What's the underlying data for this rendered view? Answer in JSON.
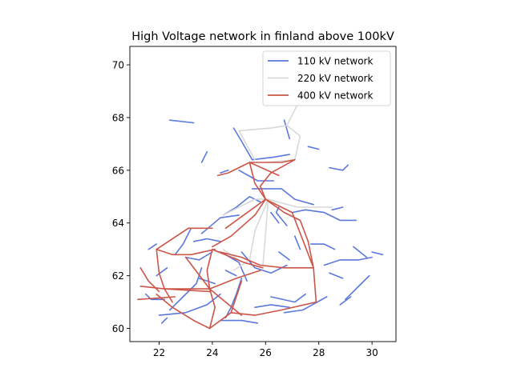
{
  "chart_data": {
    "type": "line",
    "title": "High Voltage network in finland above 100kV",
    "xlabel": "",
    "ylabel": "",
    "xlim": [
      20.9,
      30.9
    ],
    "ylim": [
      59.5,
      70.7
    ],
    "xticks": [
      22,
      24,
      26,
      28,
      30
    ],
    "yticks": [
      60,
      62,
      64,
      66,
      68,
      70
    ],
    "grid": false,
    "legend_position": "top-right",
    "series": [
      {
        "name": "110 kV network",
        "color": "#5b78dc",
        "segments": [
          [
            [
              22.4,
              67.9
            ],
            [
              23.3,
              67.8
            ]
          ],
          [
            [
              24.8,
              67.6
            ],
            [
              25.1,
              67.1
            ],
            [
              25.5,
              66.4
            ],
            [
              26.3,
              66.5
            ],
            [
              26.9,
              66.6
            ]
          ],
          [
            [
              26.7,
              67.9
            ],
            [
              26.9,
              67.2
            ]
          ],
          [
            [
              23.8,
              66.7
            ],
            [
              23.6,
              66.3
            ]
          ],
          [
            [
              24.3,
              65.9
            ],
            [
              24.6,
              66.0
            ]
          ],
          [
            [
              25.0,
              66.0
            ],
            [
              25.7,
              65.6
            ],
            [
              26.3,
              65.6
            ]
          ],
          [
            [
              24.4,
              64.3
            ],
            [
              24.9,
              64.6
            ],
            [
              25.4,
              65.0
            ],
            [
              25.8,
              64.8
            ]
          ],
          [
            [
              25.5,
              65.3
            ],
            [
              26.6,
              65.3
            ],
            [
              27.1,
              64.9
            ],
            [
              27.8,
              64.7
            ]
          ],
          [
            [
              26.8,
              63.9
            ],
            [
              26.4,
              64.4
            ],
            [
              26.5,
              64.6
            ]
          ],
          [
            [
              27.0,
              64.4
            ],
            [
              27.5,
              64.5
            ],
            [
              28.2,
              64.4
            ],
            [
              28.8,
              64.1
            ],
            [
              29.4,
              64.1
            ]
          ],
          [
            [
              28.5,
              64.5
            ],
            [
              28.9,
              64.6
            ]
          ],
          [
            [
              23.6,
              63.6
            ],
            [
              24.3,
              64.2
            ],
            [
              25.0,
              64.3
            ]
          ],
          [
            [
              23.2,
              63.8
            ],
            [
              22.9,
              63.2
            ],
            [
              22.6,
              62.8
            ]
          ],
          [
            [
              23.6,
              62.3
            ],
            [
              23.4,
              61.7
            ],
            [
              22.9,
              61.2
            ],
            [
              22.4,
              60.7
            ]
          ],
          [
            [
              24.0,
              63.0
            ],
            [
              24.5,
              62.8
            ],
            [
              25.0,
              62.5
            ],
            [
              25.3,
              61.8
            ]
          ],
          [
            [
              25.1,
              62.9
            ],
            [
              25.6,
              62.3
            ],
            [
              26.2,
              62.1
            ],
            [
              26.8,
              62.4
            ]
          ],
          [
            [
              23.0,
              62.7
            ],
            [
              23.5,
              62.6
            ],
            [
              24.0,
              62.9
            ]
          ],
          [
            [
              22.0,
              60.5
            ],
            [
              23.0,
              60.6
            ],
            [
              23.8,
              60.9
            ],
            [
              24.3,
              61.3
            ]
          ],
          [
            [
              24.3,
              60.3
            ],
            [
              25.1,
              60.3
            ],
            [
              25.7,
              60.2
            ]
          ],
          [
            [
              25.1,
              61.9
            ],
            [
              24.9,
              61.3
            ],
            [
              24.7,
              60.8
            ],
            [
              24.5,
              60.4
            ]
          ],
          [
            [
              26.2,
              61.2
            ],
            [
              27.1,
              61.0
            ],
            [
              27.5,
              61.3
            ]
          ],
          [
            [
              26.7,
              60.6
            ],
            [
              27.4,
              60.7
            ],
            [
              28.3,
              61.2
            ]
          ],
          [
            [
              28.8,
              60.9
            ],
            [
              29.2,
              61.2
            ]
          ],
          [
            [
              27.7,
              63.2
            ],
            [
              28.2,
              63.2
            ],
            [
              28.6,
              63.0
            ]
          ],
          [
            [
              28.2,
              62.4
            ],
            [
              28.8,
              62.6
            ],
            [
              29.5,
              62.6
            ],
            [
              30.0,
              62.7
            ]
          ],
          [
            [
              29.3,
              63.1
            ],
            [
              29.8,
              62.7
            ]
          ],
          [
            [
              29.0,
              61.1
            ],
            [
              29.6,
              61.7
            ],
            [
              29.9,
              62.0
            ]
          ],
          [
            [
              30.0,
              62.9
            ],
            [
              30.4,
              62.8
            ]
          ],
          [
            [
              28.4,
              62.1
            ],
            [
              28.9,
              61.9
            ]
          ],
          [
            [
              22.1,
              60.2
            ],
            [
              22.3,
              60.4
            ]
          ],
          [
            [
              21.5,
              61.3
            ],
            [
              21.7,
              61.1
            ],
            [
              22.2,
              61.1
            ]
          ],
          [
            [
              21.9,
              62.0
            ],
            [
              22.3,
              62.3
            ]
          ],
          [
            [
              21.6,
              63.0
            ],
            [
              21.9,
              63.2
            ]
          ],
          [
            [
              27.6,
              66.9
            ],
            [
              28.0,
              66.8
            ]
          ],
          [
            [
              28.4,
              66.1
            ],
            [
              28.9,
              66.0
            ],
            [
              29.1,
              66.2
            ]
          ],
          [
            [
              23.3,
              63.3
            ],
            [
              23.8,
              63.4
            ],
            [
              24.3,
              63.3
            ]
          ],
          [
            [
              24.5,
              62.2
            ],
            [
              24.9,
              62.0
            ]
          ],
          [
            [
              26.5,
              62.9
            ],
            [
              26.9,
              62.6
            ]
          ],
          [
            [
              25.6,
              60.8
            ],
            [
              26.2,
              60.9
            ],
            [
              26.9,
              60.8
            ]
          ],
          [
            [
              23.5,
              61.9
            ],
            [
              24.1,
              61.7
            ]
          ],
          [
            [
              27.1,
              63.5
            ],
            [
              27.3,
              63.0
            ]
          ],
          [
            [
              26.2,
              64.4
            ],
            [
              26.5,
              64.0
            ]
          ]
        ]
      },
      {
        "name": "220 kV network",
        "color": "#d9d9d9",
        "segments": [
          [
            [
              27.3,
              68.7
            ],
            [
              26.8,
              67.7
            ],
            [
              26.2,
              67.6
            ],
            [
              25.0,
              67.5
            ]
          ],
          [
            [
              26.8,
              67.7
            ],
            [
              27.3,
              67.3
            ],
            [
              27.1,
              66.4
            ],
            [
              26.0,
              66.3
            ]
          ],
          [
            [
              25.6,
              66.4
            ],
            [
              25.0,
              67.5
            ]
          ],
          [
            [
              24.4,
              64.3
            ],
            [
              25.6,
              64.9
            ],
            [
              26.1,
              64.9
            ],
            [
              27.2,
              64.6
            ],
            [
              28.5,
              64.6
            ]
          ],
          [
            [
              26.1,
              64.9
            ],
            [
              25.6,
              63.7
            ],
            [
              25.4,
              62.6
            ]
          ],
          [
            [
              26.1,
              64.9
            ],
            [
              26.0,
              63.6
            ],
            [
              25.9,
              62.4
            ]
          ],
          [
            [
              25.4,
              62.6
            ],
            [
              24.8,
              62.2
            ]
          ],
          [
            [
              24.4,
              63.0
            ],
            [
              25.0,
              62.6
            ]
          ]
        ]
      },
      {
        "name": "400 kV network",
        "color": "#cc5548",
        "segments": [
          [
            [
              24.2,
              65.8
            ],
            [
              24.6,
              65.9
            ],
            [
              25.4,
              66.3
            ],
            [
              26.6,
              66.3
            ],
            [
              27.1,
              66.4
            ]
          ],
          [
            [
              25.4,
              66.3
            ],
            [
              26.5,
              65.8
            ]
          ],
          [
            [
              27.1,
              66.4
            ],
            [
              26.2,
              65.9
            ],
            [
              25.8,
              65.4
            ],
            [
              26.0,
              64.9
            ]
          ],
          [
            [
              25.4,
              66.3
            ],
            [
              25.6,
              65.5
            ],
            [
              26.0,
              64.9
            ]
          ],
          [
            [
              24.0,
              63.1
            ],
            [
              24.7,
              63.5
            ],
            [
              25.6,
              64.3
            ],
            [
              26.0,
              64.9
            ],
            [
              26.7,
              64.4
            ],
            [
              27.3,
              64.1
            ],
            [
              27.6,
              63.3
            ],
            [
              27.8,
              62.3
            ],
            [
              27.9,
              61.0
            ]
          ],
          [
            [
              26.0,
              64.9
            ],
            [
              27.0,
              64.4
            ],
            [
              27.8,
              62.3
            ]
          ],
          [
            [
              26.0,
              64.9
            ],
            [
              24.5,
              63.8
            ]
          ],
          [
            [
              27.8,
              62.3
            ],
            [
              26.7,
              62.3
            ],
            [
              25.8,
              62.4
            ],
            [
              25.1,
              62.7
            ],
            [
              24.3,
              62.9
            ]
          ],
          [
            [
              27.9,
              61.0
            ],
            [
              26.6,
              60.7
            ],
            [
              25.6,
              60.5
            ],
            [
              24.7,
              60.6
            ],
            [
              23.9,
              60.0
            ],
            [
              23.3,
              60.3
            ],
            [
              22.5,
              60.8
            ],
            [
              21.9,
              61.3
            ]
          ],
          [
            [
              21.9,
              63.0
            ],
            [
              22.5,
              62.8
            ],
            [
              23.2,
              62.8
            ],
            [
              24.1,
              63.0
            ]
          ],
          [
            [
              21.9,
              63.0
            ],
            [
              22.0,
              62.1
            ],
            [
              22.2,
              61.5
            ],
            [
              22.5,
              61.0
            ]
          ],
          [
            [
              21.9,
              63.0
            ],
            [
              23.1,
              63.8
            ],
            [
              24.0,
              63.8
            ]
          ],
          [
            [
              24.0,
              63.0
            ],
            [
              23.8,
              62.2
            ],
            [
              23.9,
              61.5
            ],
            [
              24.5,
              61.0
            ],
            [
              25.1,
              60.5
            ]
          ],
          [
            [
              24.0,
              63.0
            ],
            [
              25.2,
              62.5
            ],
            [
              25.9,
              62.3
            ]
          ],
          [
            [
              23.9,
              61.5
            ],
            [
              22.2,
              61.5
            ]
          ],
          [
            [
              23.9,
              61.5
            ],
            [
              24.9,
              61.9
            ],
            [
              25.8,
              62.2
            ]
          ],
          [
            [
              21.3,
              61.6
            ],
            [
              22.2,
              61.5
            ],
            [
              23.9,
              61.4
            ]
          ],
          [
            [
              21.3,
              62.3
            ],
            [
              21.6,
              61.8
            ],
            [
              22.0,
              61.4
            ]
          ],
          [
            [
              21.2,
              61.1
            ],
            [
              22.6,
              61.2
            ]
          ],
          [
            [
              23.9,
              61.5
            ],
            [
              24.1,
              60.8
            ],
            [
              23.9,
              60.0
            ]
          ],
          [
            [
              24.7,
              60.6
            ],
            [
              25.1,
              61.8
            ]
          ],
          [
            [
              23.0,
              62.7
            ],
            [
              23.9,
              61.5
            ]
          ]
        ]
      }
    ]
  }
}
